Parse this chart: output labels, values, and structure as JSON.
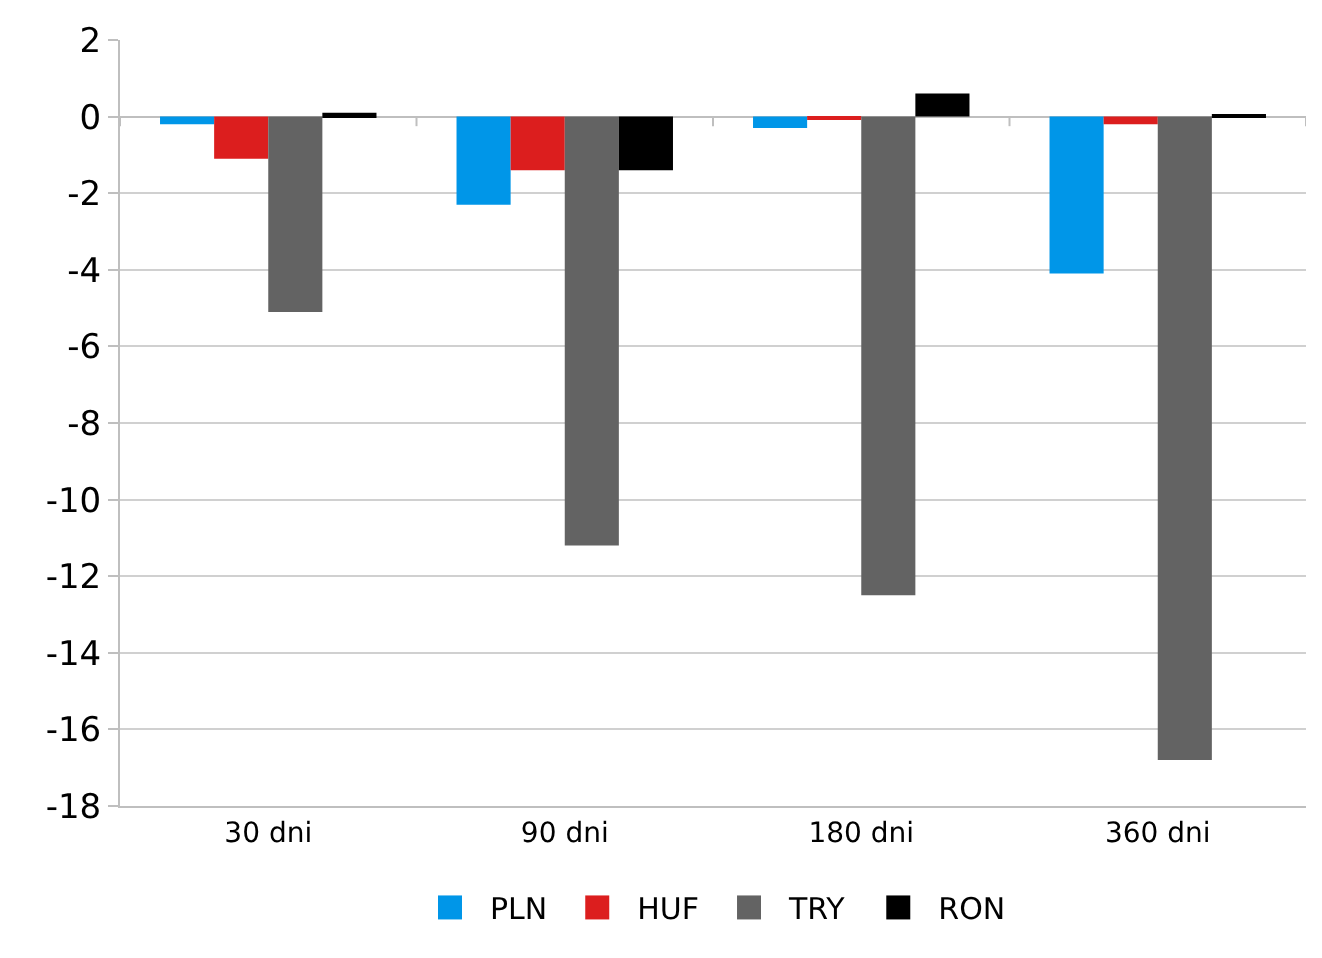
{
  "chart_data": {
    "type": "bar",
    "categories": [
      "30 dni",
      "90 dni",
      "180 dni",
      "360 dni"
    ],
    "series": [
      {
        "name": "PLN",
        "color": "#0096e8",
        "values": [
          -0.2,
          -2.3,
          -0.3,
          -4.1
        ]
      },
      {
        "name": "HUF",
        "color": "#dc1e1e",
        "values": [
          -1.1,
          -1.4,
          -0.05,
          -0.2
        ]
      },
      {
        "name": "TRY",
        "color": "#636363",
        "values": [
          -5.1,
          -11.2,
          -12.5,
          -16.8
        ]
      },
      {
        "name": "RON",
        "color": "#000000",
        "values": [
          0.1,
          -1.4,
          0.6,
          0.05
        ]
      }
    ],
    "ylim": [
      -18,
      2
    ],
    "yticks": [
      -18,
      -16,
      -14,
      -12,
      -10,
      -8,
      -6,
      -4,
      -2,
      0,
      2
    ],
    "grid": "y",
    "legend": "bottom"
  }
}
